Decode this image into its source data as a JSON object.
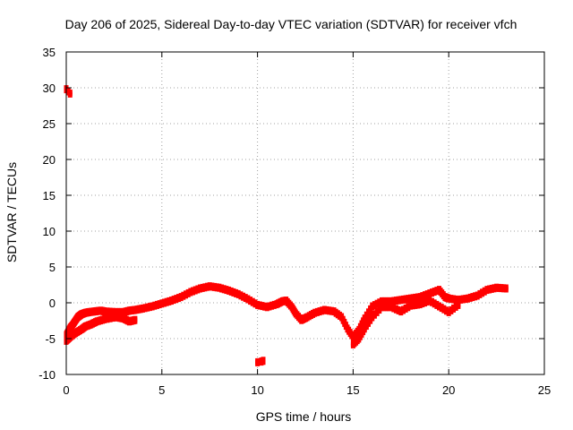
{
  "chart_data": {
    "type": "scatter",
    "title": "Day 206 of 2025, Sidereal Day-to-day VTEC variation (SDTVAR) for receiver vfch",
    "xlabel": "GPS time / hours",
    "ylabel": "SDTVAR / TECUs",
    "xlim": [
      0,
      25
    ],
    "ylim": [
      -10,
      35
    ],
    "xticks": [
      0,
      5,
      10,
      15,
      20,
      25
    ],
    "yticks": [
      -10,
      -5,
      0,
      5,
      10,
      15,
      20,
      25,
      30,
      35
    ],
    "grid": true,
    "series": [
      {
        "name": "SDTVAR (scatter band)",
        "color": "#ff0000",
        "points": [
          [
            0.0,
            -4.5
          ],
          [
            0.1,
            -4.0
          ],
          [
            0.2,
            -3.5
          ],
          [
            0.3,
            -3.2
          ],
          [
            0.4,
            -2.8
          ],
          [
            0.5,
            -2.4
          ],
          [
            0.6,
            -2.0
          ],
          [
            0.7,
            -1.8
          ],
          [
            0.8,
            -1.6
          ],
          [
            1.0,
            -1.4
          ],
          [
            1.2,
            -1.3
          ],
          [
            1.5,
            -1.2
          ],
          [
            1.8,
            -1.1
          ],
          [
            2.0,
            -1.2
          ],
          [
            2.6,
            -1.3
          ],
          [
            3.0,
            -1.3
          ],
          [
            3.3,
            -1.1
          ],
          [
            3.6,
            -1.0
          ],
          [
            4.0,
            -0.8
          ],
          [
            4.5,
            -0.5
          ],
          [
            5.0,
            -0.1
          ],
          [
            5.5,
            0.3
          ],
          [
            6.0,
            0.8
          ],
          [
            6.5,
            1.5
          ],
          [
            7.0,
            2.0
          ],
          [
            7.5,
            2.3
          ],
          [
            8.0,
            2.1
          ],
          [
            8.5,
            1.7
          ],
          [
            9.0,
            1.2
          ],
          [
            9.5,
            0.5
          ],
          [
            10.0,
            -0.3
          ],
          [
            10.5,
            -0.6
          ],
          [
            11.0,
            -0.2
          ],
          [
            11.3,
            0.2
          ],
          [
            11.5,
            0.3
          ],
          [
            11.8,
            -0.6
          ],
          [
            12.0,
            -1.5
          ],
          [
            12.3,
            -2.4
          ],
          [
            12.6,
            -2.0
          ],
          [
            13.0,
            -1.4
          ],
          [
            13.5,
            -1.0
          ],
          [
            14.0,
            -1.2
          ],
          [
            14.4,
            -2.0
          ],
          [
            14.7,
            -3.6
          ],
          [
            15.0,
            -4.8
          ],
          [
            15.3,
            -3.8
          ],
          [
            15.6,
            -2.2
          ],
          [
            16.0,
            -0.5
          ],
          [
            16.5,
            0.2
          ],
          [
            17.0,
            0.2
          ],
          [
            17.5,
            0.4
          ],
          [
            18.0,
            0.6
          ],
          [
            18.5,
            0.8
          ],
          [
            19.0,
            1.3
          ],
          [
            19.5,
            1.8
          ],
          [
            19.8,
            0.8
          ],
          [
            20.0,
            0.6
          ],
          [
            20.5,
            0.4
          ],
          [
            21.0,
            0.6
          ],
          [
            21.5,
            1.0
          ],
          [
            22.0,
            1.8
          ],
          [
            22.5,
            2.1
          ],
          [
            23.0,
            2.0
          ]
        ]
      },
      {
        "name": "lower branch",
        "color": "#ff0000",
        "points": [
          [
            0.0,
            -5.3
          ],
          [
            0.2,
            -4.8
          ],
          [
            0.5,
            -4.2
          ],
          [
            0.8,
            -3.7
          ],
          [
            1.0,
            -3.3
          ],
          [
            1.3,
            -3.0
          ],
          [
            1.6,
            -2.6
          ],
          [
            2.0,
            -2.3
          ],
          [
            2.6,
            -2.0
          ],
          [
            3.0,
            -2.2
          ],
          [
            3.3,
            -2.6
          ],
          [
            3.6,
            -2.4
          ],
          [
            15.0,
            -5.8
          ],
          [
            15.3,
            -5.0
          ],
          [
            15.6,
            -3.6
          ],
          [
            16.0,
            -2.0
          ],
          [
            16.5,
            -0.6
          ],
          [
            17.0,
            -0.6
          ],
          [
            17.5,
            -1.2
          ],
          [
            18.0,
            -0.4
          ],
          [
            18.5,
            -0.2
          ],
          [
            19.0,
            0.3
          ],
          [
            19.5,
            -0.5
          ],
          [
            20.0,
            -1.3
          ],
          [
            20.5,
            -0.3
          ]
        ]
      },
      {
        "name": "outliers",
        "color": "#ff0000",
        "points": [
          [
            0.0,
            29.8
          ],
          [
            0.1,
            29.5
          ],
          [
            0.2,
            29.2
          ],
          [
            10.0,
            -8.3
          ],
          [
            10.2,
            -8.2
          ],
          [
            10.3,
            -8.1
          ]
        ]
      }
    ]
  }
}
